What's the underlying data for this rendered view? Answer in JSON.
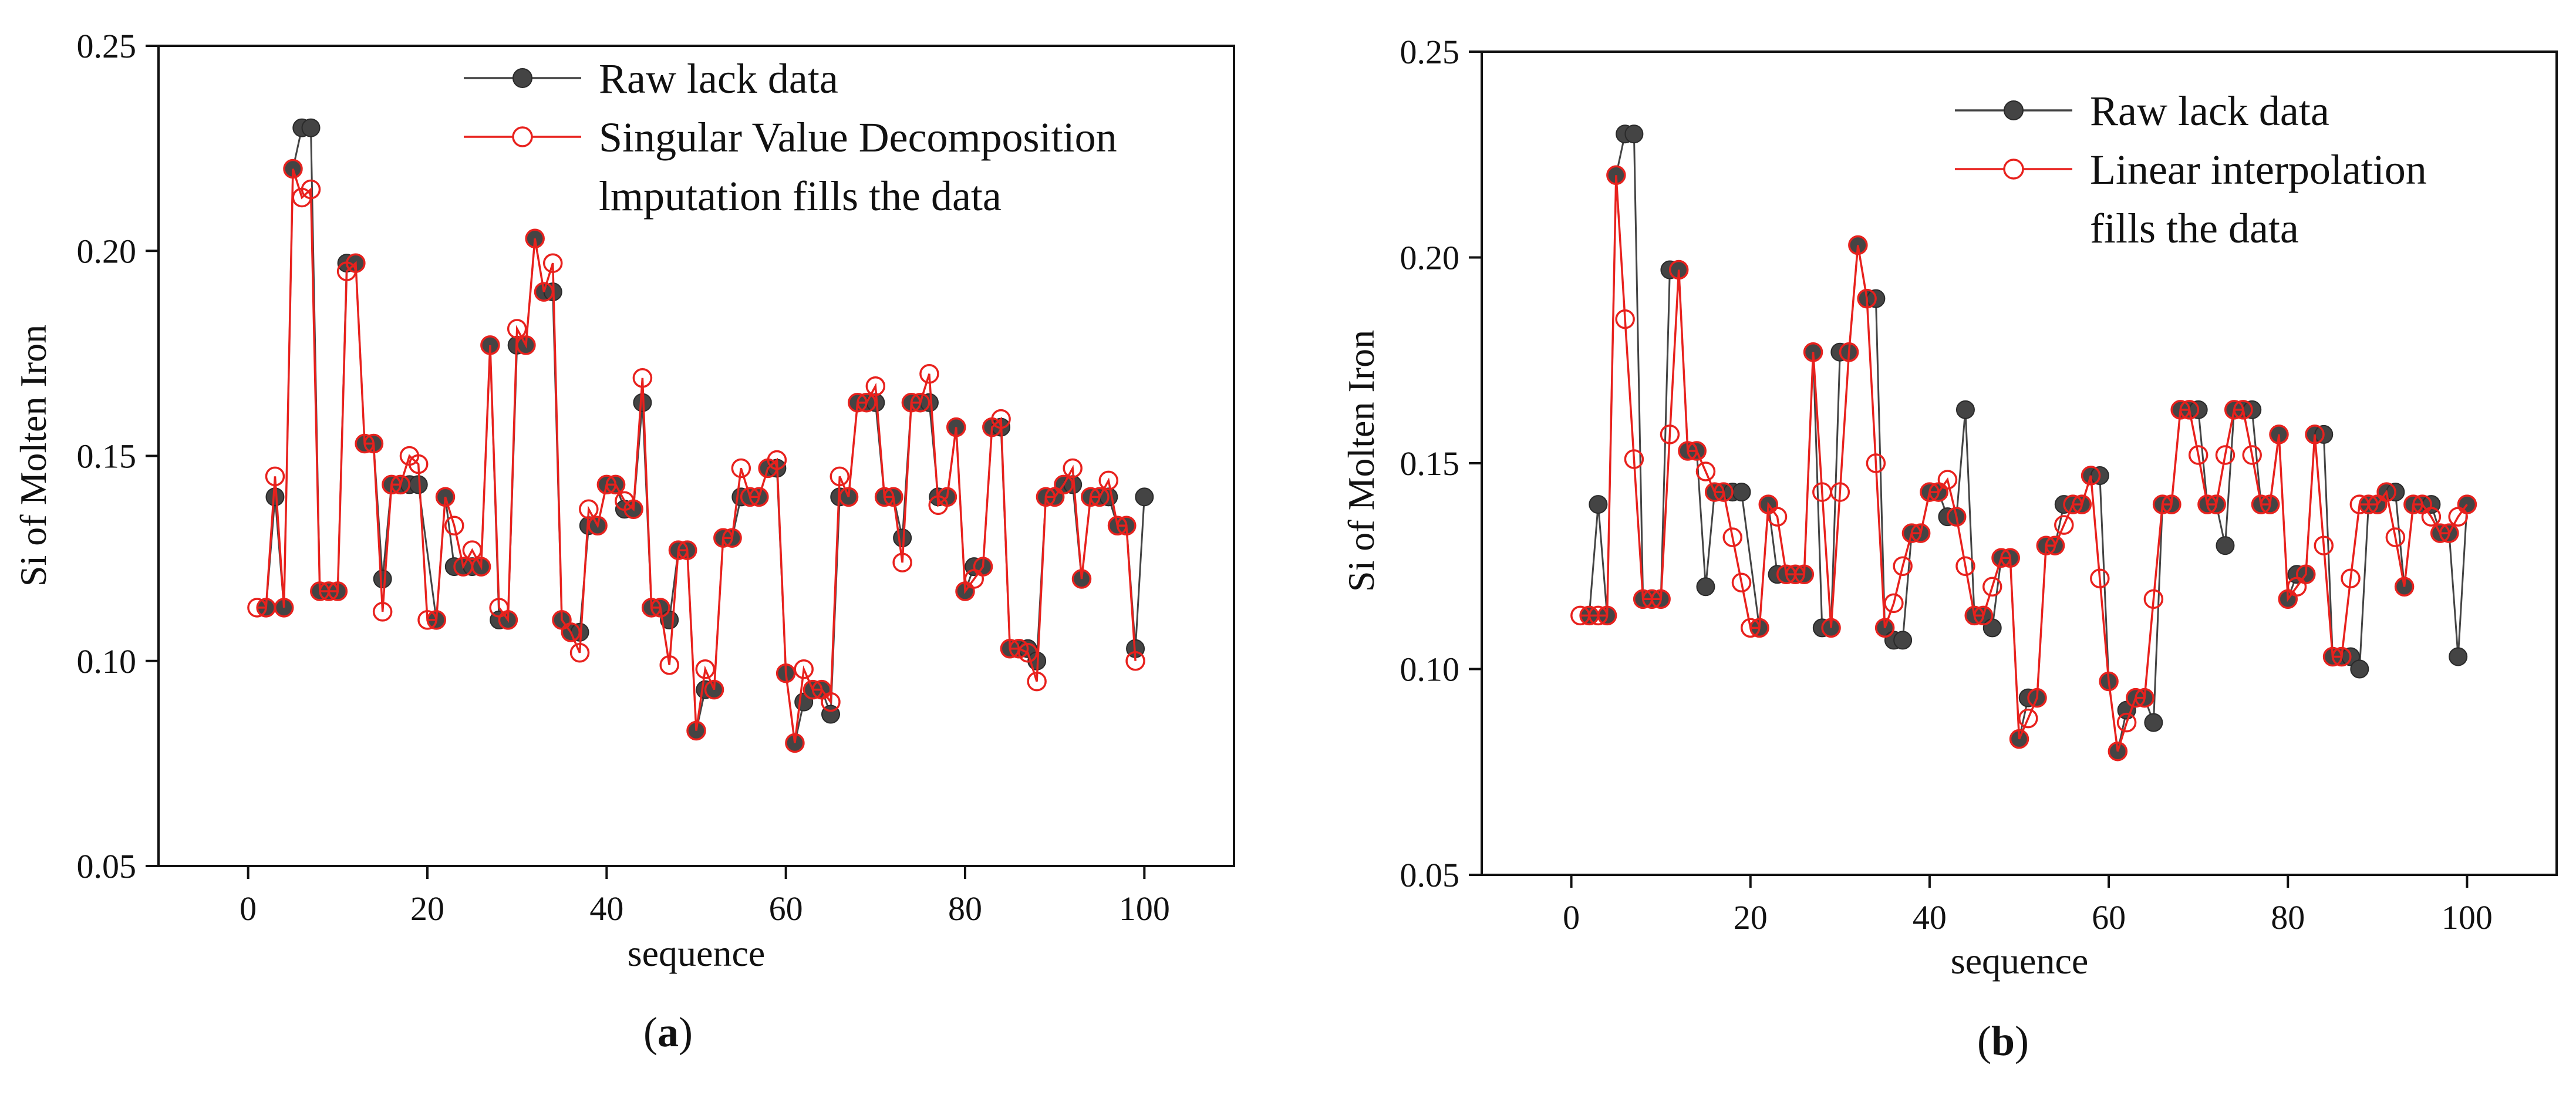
{
  "colors": {
    "raw": "#444444",
    "filled": "#e8211d",
    "axis": "#111111"
  },
  "chart_data": [
    {
      "type": "line",
      "panel_label": "a",
      "xlabel": "sequence",
      "ylabel": "Si of Molten Iron",
      "xlim": [
        -10,
        110
      ],
      "ylim": [
        0.05,
        0.25
      ],
      "xticks": [
        0,
        20,
        40,
        60,
        80,
        100
      ],
      "xtick_labels": [
        "0",
        "20",
        "40",
        "60",
        "80",
        "100"
      ],
      "yticks": [
        0.05,
        0.1,
        0.15,
        0.2,
        0.25
      ],
      "ytick_labels": [
        "0.05",
        "0.10",
        "0.15",
        "0.20",
        "0.25"
      ],
      "legend_position": "top-center",
      "series": [
        {
          "name": "Raw lack data",
          "legend_lines": [
            "Raw lack data"
          ],
          "marker": "filled-circle",
          "x": [
            2,
            3,
            4,
            5,
            6,
            7,
            8,
            9,
            10,
            11,
            12,
            13,
            14,
            15,
            16,
            17,
            18,
            19,
            21,
            22,
            23,
            24,
            25,
            26,
            27,
            28,
            29,
            30,
            31,
            32,
            33,
            34,
            35,
            36,
            37,
            38,
            39,
            40,
            41,
            42,
            43,
            44,
            45,
            46,
            47,
            48,
            49,
            50,
            51,
            52,
            53,
            54,
            55,
            56,
            57,
            58,
            59,
            60,
            61,
            62,
            63,
            64,
            65,
            66,
            67,
            68,
            69,
            70,
            71,
            72,
            73,
            74,
            75,
            76,
            77,
            78,
            79,
            80,
            81,
            82,
            83,
            84,
            85,
            86,
            87,
            88,
            89,
            90,
            91,
            92,
            93,
            94,
            95,
            96,
            97,
            98,
            99,
            100
          ],
          "y": [
            0.113,
            0.14,
            0.113,
            0.22,
            0.23,
            0.23,
            0.117,
            0.117,
            0.117,
            0.197,
            0.197,
            0.153,
            0.153,
            0.12,
            0.143,
            0.143,
            0.143,
            0.143,
            0.11,
            0.14,
            0.123,
            0.123,
            0.123,
            0.123,
            0.177,
            0.11,
            0.11,
            0.177,
            0.177,
            0.203,
            0.19,
            0.19,
            0.11,
            0.107,
            0.107,
            0.133,
            0.133,
            0.143,
            0.143,
            0.137,
            0.137,
            0.163,
            0.113,
            0.113,
            0.11,
            0.127,
            0.127,
            0.083,
            0.093,
            0.093,
            0.13,
            0.13,
            0.14,
            0.14,
            0.14,
            0.147,
            0.147,
            0.097,
            0.08,
            0.09,
            0.093,
            0.093,
            0.087,
            0.14,
            0.14,
            0.163,
            0.163,
            0.163,
            0.14,
            0.14,
            0.13,
            0.163,
            0.163,
            0.163,
            0.14,
            0.14,
            0.157,
            0.117,
            0.123,
            0.123,
            0.157,
            0.157,
            0.103,
            0.103,
            0.103,
            0.1,
            0.14,
            0.14,
            0.143,
            0.143,
            0.12,
            0.14,
            0.14,
            0.14,
            0.133,
            0.133,
            0.103,
            0.14
          ]
        },
        {
          "name": "Singular Value Decomposition lmputation fills the data",
          "legend_lines": [
            "Singular Value Decomposition",
            "lmputation fills the data"
          ],
          "marker": "open-circle",
          "x": [
            1,
            2,
            3,
            4,
            5,
            6,
            7,
            8,
            9,
            10,
            11,
            12,
            13,
            14,
            15,
            16,
            17,
            18,
            19,
            20,
            21,
            22,
            23,
            24,
            25,
            26,
            27,
            28,
            29,
            30,
            31,
            32,
            33,
            34,
            35,
            36,
            37,
            38,
            39,
            40,
            41,
            42,
            43,
            44,
            45,
            46,
            47,
            48,
            49,
            50,
            51,
            52,
            53,
            54,
            55,
            56,
            57,
            58,
            59,
            60,
            61,
            62,
            63,
            64,
            65,
            66,
            67,
            68,
            69,
            70,
            71,
            72,
            73,
            74,
            75,
            76,
            77,
            78,
            79,
            80,
            81,
            82,
            83,
            84,
            85,
            86,
            87,
            88,
            89,
            90,
            91,
            92,
            93,
            94,
            95,
            96,
            97,
            98,
            99
          ],
          "y": [
            0.113,
            0.113,
            0.145,
            0.113,
            0.22,
            0.213,
            0.215,
            0.117,
            0.117,
            0.117,
            0.195,
            0.197,
            0.153,
            0.153,
            0.112,
            0.143,
            0.143,
            0.15,
            0.148,
            0.11,
            0.11,
            0.14,
            0.133,
            0.123,
            0.127,
            0.123,
            0.177,
            0.113,
            0.11,
            0.181,
            0.177,
            0.203,
            0.19,
            0.197,
            0.11,
            0.107,
            0.102,
            0.137,
            0.133,
            0.143,
            0.143,
            0.139,
            0.137,
            0.169,
            0.113,
            0.113,
            0.099,
            0.127,
            0.127,
            0.083,
            0.098,
            0.093,
            0.13,
            0.13,
            0.147,
            0.14,
            0.14,
            0.147,
            0.149,
            0.097,
            0.08,
            0.098,
            0.093,
            0.093,
            0.09,
            0.145,
            0.14,
            0.163,
            0.163,
            0.167,
            0.14,
            0.14,
            0.124,
            0.163,
            0.163,
            0.17,
            0.138,
            0.14,
            0.157,
            0.117,
            0.12,
            0.123,
            0.157,
            0.159,
            0.103,
            0.103,
            0.102,
            0.095,
            0.14,
            0.14,
            0.143,
            0.147,
            0.12,
            0.14,
            0.14,
            0.144,
            0.133,
            0.133,
            0.1
          ]
        }
      ]
    },
    {
      "type": "line",
      "panel_label": "b",
      "xlabel": "sequence",
      "ylabel": "Si of Molten Iron",
      "xlim": [
        -10,
        110
      ],
      "ylim": [
        0.05,
        0.25
      ],
      "xticks": [
        0,
        20,
        40,
        60,
        80,
        100
      ],
      "xtick_labels": [
        "0",
        "20",
        "40",
        "60",
        "80",
        "100"
      ],
      "yticks": [
        0.05,
        0.1,
        0.15,
        0.2,
        0.25
      ],
      "ytick_labels": [
        "0.05",
        "0.10",
        "0.15",
        "0.20",
        "0.25"
      ],
      "legend_position": "top-right",
      "series": [
        {
          "name": "Raw lack data",
          "legend_lines": [
            "Raw lack data"
          ],
          "marker": "filled-circle",
          "x": [
            2,
            3,
            4,
            5,
            6,
            7,
            8,
            9,
            10,
            11,
            12,
            13,
            14,
            15,
            16,
            17,
            18,
            19,
            21,
            22,
            23,
            24,
            25,
            26,
            27,
            28,
            29,
            30,
            31,
            32,
            33,
            34,
            35,
            36,
            37,
            38,
            39,
            40,
            41,
            42,
            43,
            44,
            45,
            46,
            47,
            48,
            49,
            50,
            51,
            52,
            53,
            54,
            55,
            56,
            57,
            58,
            59,
            60,
            61,
            62,
            63,
            64,
            65,
            66,
            67,
            68,
            69,
            70,
            71,
            72,
            73,
            74,
            75,
            76,
            77,
            78,
            79,
            80,
            81,
            82,
            83,
            84,
            85,
            86,
            87,
            88,
            89,
            90,
            91,
            92,
            93,
            94,
            95,
            96,
            97,
            98,
            99,
            100
          ],
          "y": [
            0.113,
            0.14,
            0.113,
            0.22,
            0.23,
            0.23,
            0.117,
            0.117,
            0.117,
            0.197,
            0.197,
            0.153,
            0.153,
            0.12,
            0.143,
            0.143,
            0.143,
            0.143,
            0.11,
            0.14,
            0.123,
            0.123,
            0.123,
            0.123,
            0.177,
            0.11,
            0.11,
            0.177,
            0.177,
            0.203,
            0.19,
            0.19,
            0.11,
            0.107,
            0.107,
            0.133,
            0.133,
            0.143,
            0.143,
            0.137,
            0.137,
            0.163,
            0.113,
            0.113,
            0.11,
            0.127,
            0.127,
            0.083,
            0.093,
            0.093,
            0.13,
            0.13,
            0.14,
            0.14,
            0.14,
            0.147,
            0.147,
            0.097,
            0.08,
            0.09,
            0.093,
            0.093,
            0.087,
            0.14,
            0.14,
            0.163,
            0.163,
            0.163,
            0.14,
            0.14,
            0.13,
            0.163,
            0.163,
            0.163,
            0.14,
            0.14,
            0.157,
            0.117,
            0.123,
            0.123,
            0.157,
            0.157,
            0.103,
            0.103,
            0.103,
            0.1,
            0.14,
            0.14,
            0.143,
            0.143,
            0.12,
            0.14,
            0.14,
            0.14,
            0.133,
            0.133,
            0.103,
            0.14
          ]
        },
        {
          "name": "Linear interpolation fills the data",
          "legend_lines": [
            "Linear interpolation",
            "fills the data"
          ],
          "marker": "open-circle",
          "x": [
            1,
            2,
            3,
            4,
            5,
            6,
            7,
            8,
            9,
            10,
            11,
            12,
            13,
            14,
            15,
            16,
            17,
            18,
            19,
            20,
            21,
            22,
            23,
            24,
            25,
            26,
            27,
            28,
            29,
            30,
            31,
            32,
            33,
            34,
            35,
            36,
            37,
            38,
            39,
            40,
            41,
            42,
            43,
            44,
            45,
            46,
            47,
            48,
            49,
            50,
            51,
            52,
            53,
            54,
            55,
            56,
            57,
            58,
            59,
            60,
            61,
            62,
            63,
            64,
            65,
            66,
            67,
            68,
            69,
            70,
            71,
            72,
            73,
            74,
            75,
            76,
            77,
            78,
            79,
            80,
            81,
            82,
            83,
            84,
            85,
            86,
            87,
            88,
            89,
            90,
            91,
            92,
            93,
            94,
            95,
            96,
            97,
            98,
            99,
            100
          ],
          "y": [
            0.113,
            0.113,
            0.113,
            0.113,
            0.22,
            0.185,
            0.151,
            0.117,
            0.117,
            0.117,
            0.157,
            0.197,
            0.153,
            0.153,
            0.148,
            0.143,
            0.143,
            0.132,
            0.121,
            0.11,
            0.11,
            0.14,
            0.137,
            0.123,
            0.123,
            0.123,
            0.177,
            0.143,
            0.11,
            0.143,
            0.177,
            0.203,
            0.19,
            0.15,
            0.11,
            0.116,
            0.125,
            0.133,
            0.133,
            0.143,
            0.143,
            0.146,
            0.137,
            0.125,
            0.113,
            0.113,
            0.12,
            0.127,
            0.127,
            0.083,
            0.088,
            0.093,
            0.13,
            0.13,
            0.135,
            0.14,
            0.14,
            0.147,
            0.122,
            0.097,
            0.08,
            0.087,
            0.093,
            0.093,
            0.117,
            0.14,
            0.14,
            0.163,
            0.163,
            0.152,
            0.14,
            0.14,
            0.152,
            0.163,
            0.163,
            0.152,
            0.14,
            0.14,
            0.157,
            0.117,
            0.12,
            0.123,
            0.157,
            0.13,
            0.103,
            0.103,
            0.122,
            0.14,
            0.14,
            0.14,
            0.143,
            0.132,
            0.12,
            0.14,
            0.14,
            0.137,
            0.133,
            0.133,
            0.137,
            0.14
          ]
        }
      ]
    }
  ]
}
